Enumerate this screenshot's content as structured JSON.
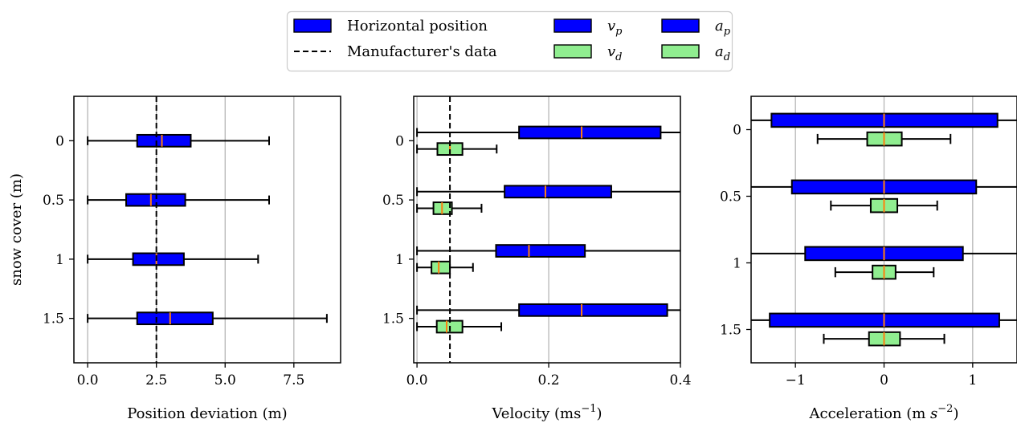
{
  "legend": {
    "entries": [
      {
        "label": "Horizontal position",
        "kind": "box",
        "color": "#0000ff"
      },
      {
        "label": "Manufacturer's data",
        "kind": "dashed-line",
        "color": "#000000"
      },
      {
        "label": "v_p",
        "main": "v",
        "sub": "p",
        "kind": "box",
        "color": "#0000ff"
      },
      {
        "label": "v_d",
        "main": "v",
        "sub": "d",
        "kind": "box",
        "color": "#90ee90"
      },
      {
        "label": "a_p",
        "main": "a",
        "sub": "p",
        "kind": "box",
        "color": "#0000ff"
      },
      {
        "label": "a_d",
        "main": "a",
        "sub": "d",
        "kind": "box",
        "color": "#90ee90"
      }
    ]
  },
  "colors": {
    "position": "#0000ff",
    "derived": "#90ee90",
    "median": "#ff7f0e",
    "grid": "#b0b0b0"
  },
  "chart_data": [
    {
      "type": "box",
      "orientation": "horizontal",
      "ylabel": "snow cover (m)",
      "xlabel": "Position deviation (m)",
      "categories": [
        "0",
        "0.5",
        "1",
        "1.5"
      ],
      "xlim": [
        -0.5,
        9.2
      ],
      "xticks": [
        0.0,
        2.5,
        5.0,
        7.5
      ],
      "xtick_labels": [
        "0.0",
        "2.5",
        "5.0",
        "7.5"
      ],
      "grid": "vertical",
      "reference_line": 2.5,
      "series": [
        {
          "name": "Horizontal position",
          "color": "#0000ff",
          "boxes": [
            {
              "whislo": 0.0,
              "q1": 1.8,
              "med": 2.7,
              "q3": 3.75,
              "whishi": 6.6
            },
            {
              "whislo": 0.0,
              "q1": 1.4,
              "med": 2.3,
              "q3": 3.55,
              "whishi": 6.6
            },
            {
              "whislo": 0.0,
              "q1": 1.65,
              "med": 2.5,
              "q3": 3.5,
              "whishi": 6.2
            },
            {
              "whislo": 0.0,
              "q1": 1.8,
              "med": 3.0,
              "q3": 4.55,
              "whishi": 8.7
            }
          ]
        }
      ]
    },
    {
      "type": "box",
      "orientation": "horizontal",
      "xlabel": "Velocity (ms",
      "xlabel_sup": "−1",
      "xlabel_end": ")",
      "categories": [
        "0",
        "0.5",
        "1",
        "1.5"
      ],
      "xlim": [
        -0.005,
        0.4
      ],
      "xticks": [
        0.0,
        0.2,
        0.4
      ],
      "xtick_labels": [
        "0.0",
        "0.2",
        "0.4"
      ],
      "grid": "vertical",
      "reference_line": 0.05,
      "series": [
        {
          "name": "v_p",
          "color": "#0000ff",
          "boxes": [
            {
              "whislo": 0.0,
              "q1": 0.155,
              "med": 0.25,
              "q3": 0.37,
              "whishi": 0.41
            },
            {
              "whislo": 0.0,
              "q1": 0.133,
              "med": 0.195,
              "q3": 0.295,
              "whishi": 0.41
            },
            {
              "whislo": 0.0,
              "q1": 0.12,
              "med": 0.17,
              "q3": 0.255,
              "whishi": 0.41
            },
            {
              "whislo": 0.0,
              "q1": 0.155,
              "med": 0.25,
              "q3": 0.38,
              "whishi": 0.41
            }
          ]
        },
        {
          "name": "v_d",
          "color": "#90ee90",
          "boxes": [
            {
              "whislo": 0.0,
              "q1": 0.031,
              "med": 0.05,
              "q3": 0.069,
              "whishi": 0.121
            },
            {
              "whislo": 0.0,
              "q1": 0.025,
              "med": 0.038,
              "q3": 0.053,
              "whishi": 0.098
            },
            {
              "whislo": 0.0,
              "q1": 0.022,
              "med": 0.033,
              "q3": 0.05,
              "whishi": 0.085
            },
            {
              "whislo": 0.0,
              "q1": 0.03,
              "med": 0.045,
              "q3": 0.069,
              "whishi": 0.128
            }
          ]
        }
      ]
    },
    {
      "type": "box",
      "orientation": "horizontal",
      "xlabel": "Acceleration (m ",
      "xlabel_italic": "s",
      "xlabel_sup": "−2",
      "xlabel_end": ")",
      "categories": [
        "0",
        "0.5",
        "1",
        "1.5"
      ],
      "xlim": [
        -1.5,
        1.5
      ],
      "xticks": [
        -1,
        0,
        1
      ],
      "xtick_labels": [
        "−1",
        "0",
        "1"
      ],
      "grid": "vertical",
      "series": [
        {
          "name": "a_p",
          "color": "#0000ff",
          "boxes": [
            {
              "whislo": -1.6,
              "q1": -1.27,
              "med": 0.0,
              "q3": 1.28,
              "whishi": 1.6
            },
            {
              "whislo": -1.6,
              "q1": -1.04,
              "med": 0.0,
              "q3": 1.04,
              "whishi": 1.6
            },
            {
              "whislo": -1.6,
              "q1": -0.89,
              "med": 0.0,
              "q3": 0.89,
              "whishi": 1.6
            },
            {
              "whislo": -1.6,
              "q1": -1.29,
              "med": 0.0,
              "q3": 1.3,
              "whishi": 1.6
            }
          ]
        },
        {
          "name": "a_d",
          "color": "#90ee90",
          "boxes": [
            {
              "whislo": -0.75,
              "q1": -0.19,
              "med": 0.0,
              "q3": 0.2,
              "whishi": 0.75
            },
            {
              "whislo": -0.6,
              "q1": -0.15,
              "med": 0.0,
              "q3": 0.15,
              "whishi": 0.6
            },
            {
              "whislo": -0.55,
              "q1": -0.13,
              "med": 0.0,
              "q3": 0.13,
              "whishi": 0.56
            },
            {
              "whislo": -0.68,
              "q1": -0.17,
              "med": 0.0,
              "q3": 0.18,
              "whishi": 0.68
            }
          ]
        }
      ]
    }
  ]
}
